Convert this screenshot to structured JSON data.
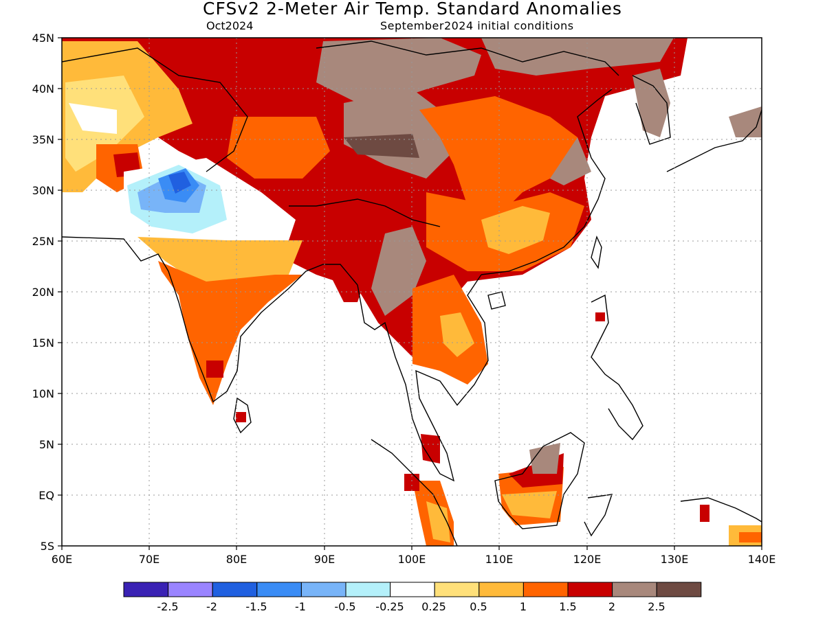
{
  "header": {
    "title": "CFSv2 2-Meter Air Temp. Standard Anomalies",
    "valid_month": "Oct2024",
    "initial_conditions": "September2024 initial conditions"
  },
  "axes": {
    "lon_labels": [
      "60E",
      "70E",
      "80E",
      "90E",
      "100E",
      "110E",
      "120E",
      "130E",
      "140E"
    ],
    "lat_labels": [
      "45N",
      "40N",
      "35N",
      "30N",
      "25N",
      "20N",
      "15N",
      "10N",
      "5N",
      "EQ",
      "5S"
    ],
    "lon_range": [
      60,
      140
    ],
    "lat_range": [
      -5,
      45
    ],
    "grid": "dotted"
  },
  "legend": {
    "colors": [
      "#3a22b4",
      "#9a84ff",
      "#2060e0",
      "#3a8cf5",
      "#78b4f8",
      "#b4f0fa",
      "#ffffff",
      "#ffe07a",
      "#ffba3a",
      "#ff6400",
      "#c80000",
      "#a8887c",
      "#6e4a42"
    ],
    "labels": [
      "-2.5",
      "-2",
      "-1.5",
      "-1",
      "-0.5",
      "-0.25",
      "0.25",
      "0.5",
      "1",
      "1.5",
      "2",
      "2.5"
    ]
  },
  "regions": [
    {
      "name": "northern-warm-band",
      "color": "#c80000"
    },
    {
      "name": "tibet-brown",
      "color": "#a8887c"
    },
    {
      "name": "pakistan-cold",
      "color": "#3a8cf5"
    },
    {
      "name": "india-warm",
      "color": "#ff6400"
    },
    {
      "name": "south-china-warm",
      "color": "#ffba3a"
    }
  ]
}
